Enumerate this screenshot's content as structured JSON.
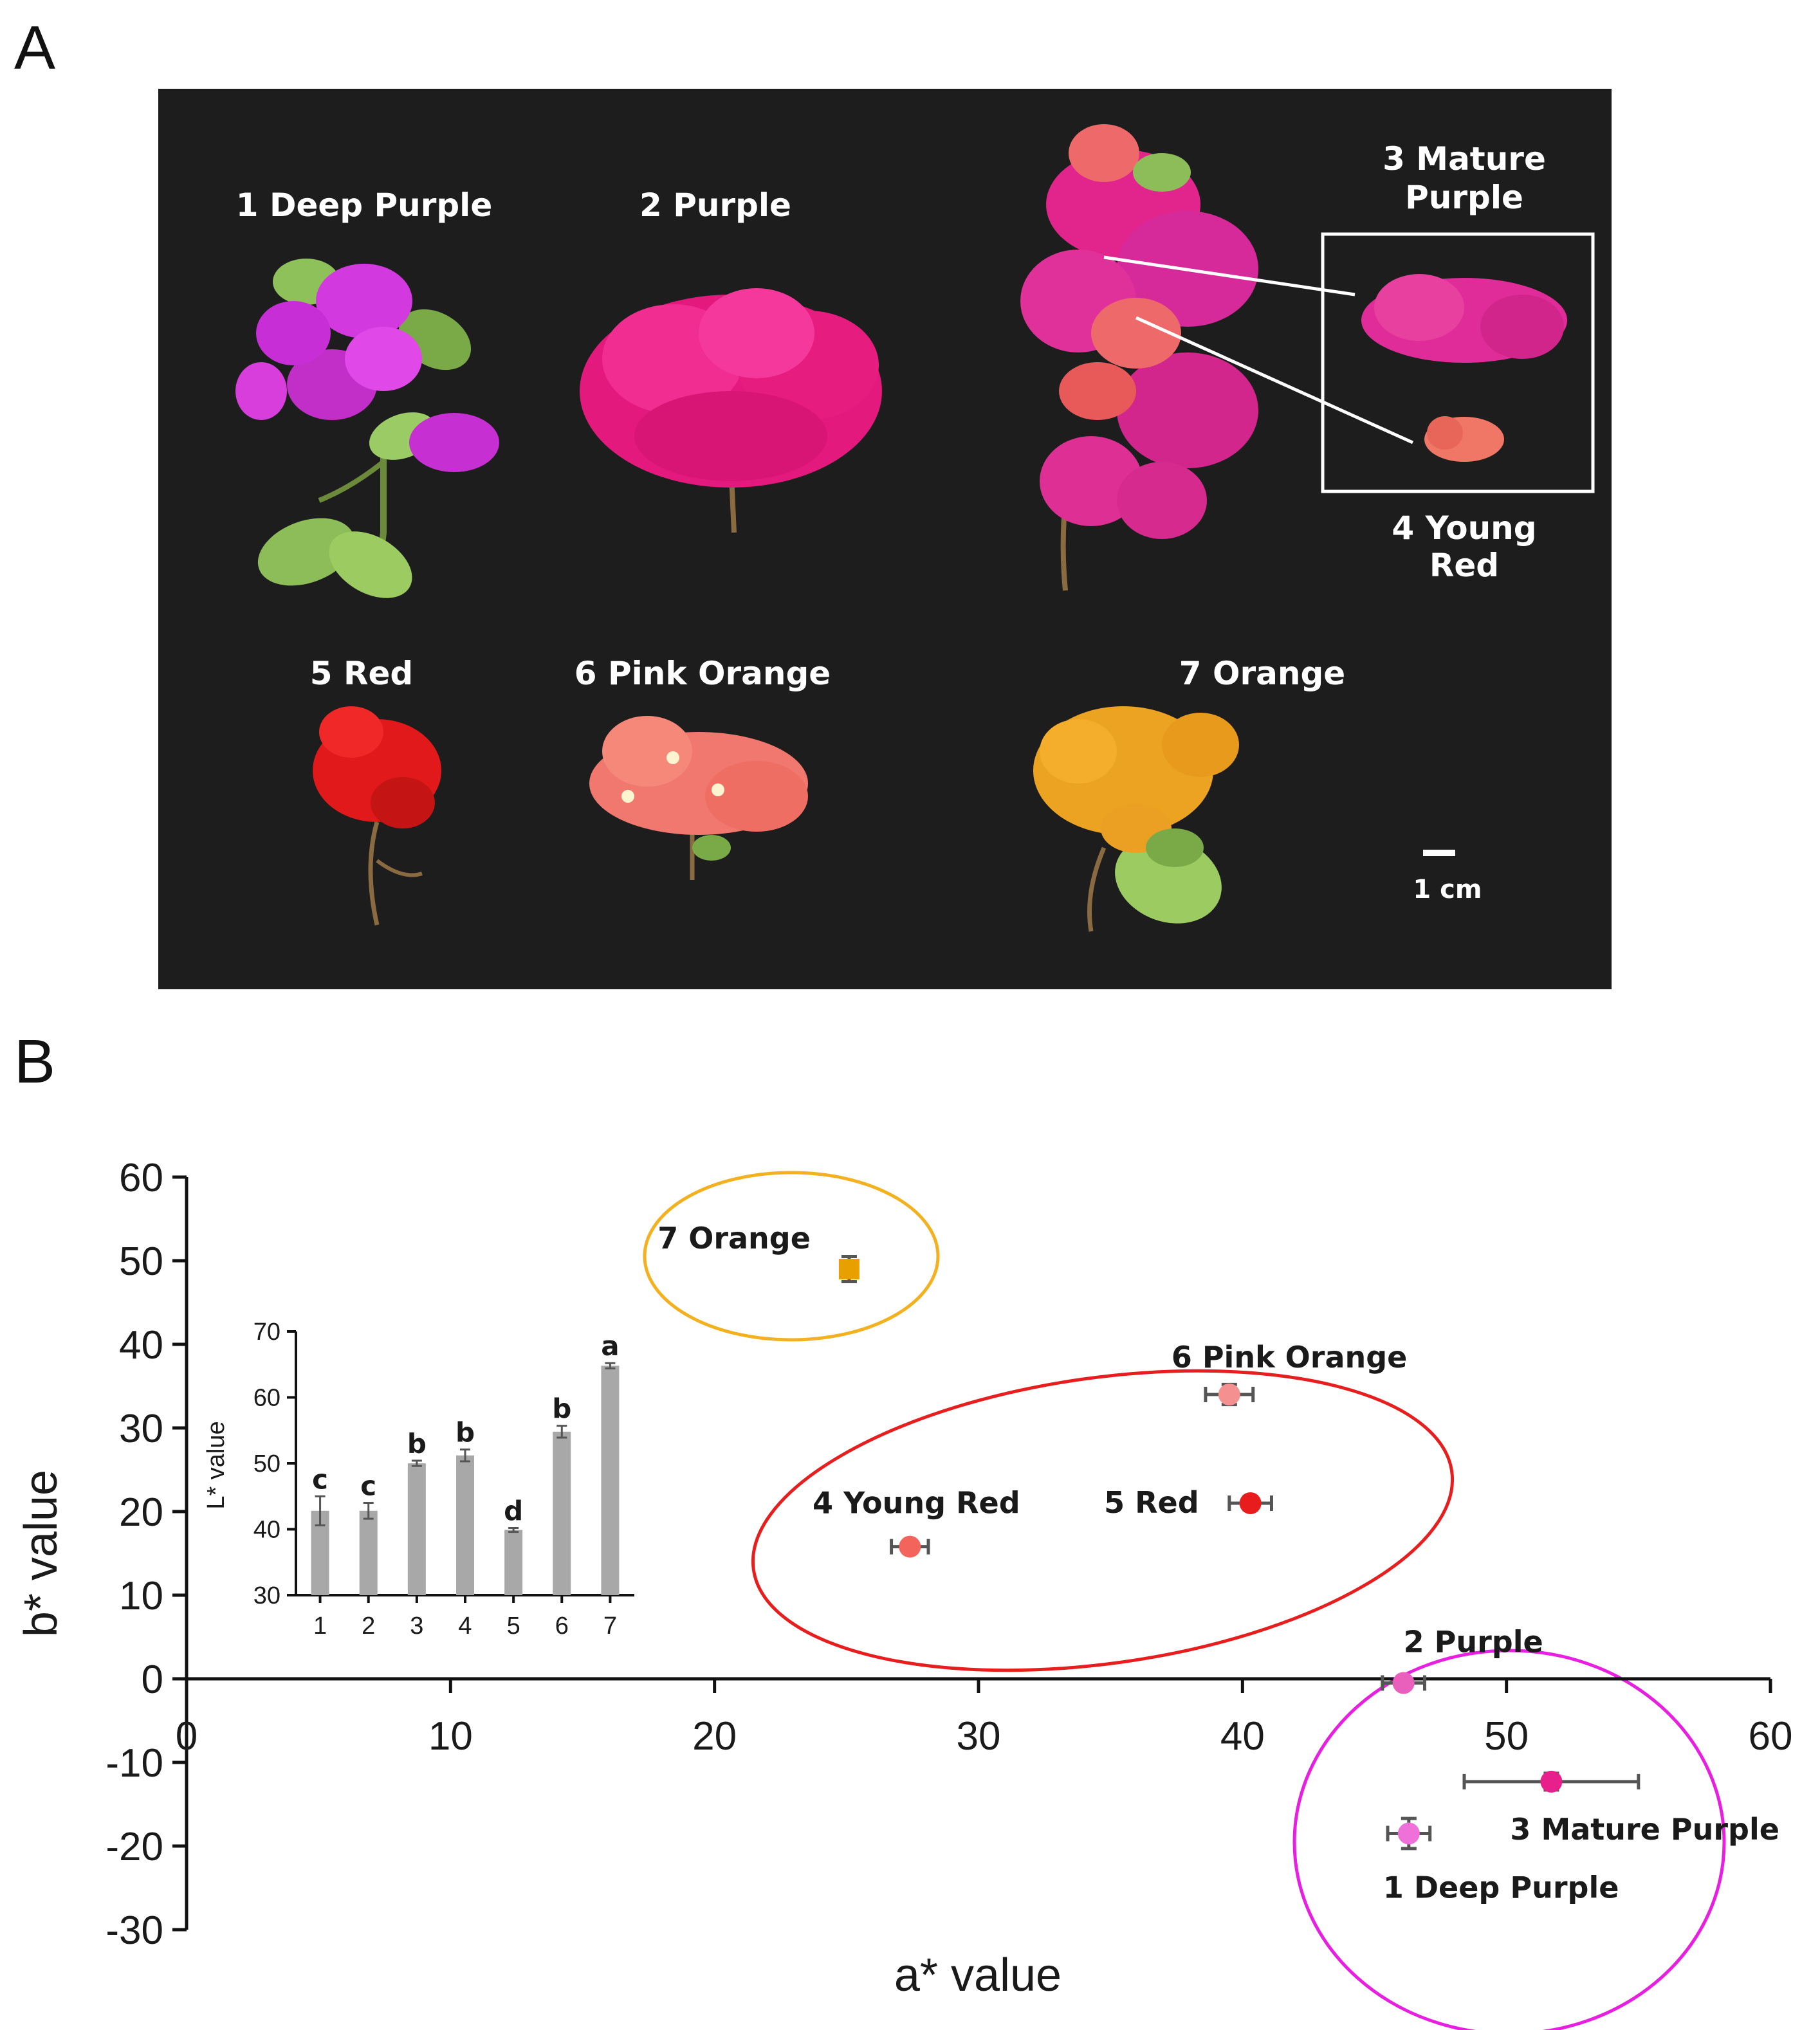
{
  "panels": {
    "a": "A",
    "b": "B"
  },
  "photo": {
    "labels": [
      {
        "id": "1",
        "text": "1 Deep Purple"
      },
      {
        "id": "2",
        "text": "2 Purple"
      },
      {
        "id": "3a",
        "text": "3 Mature"
      },
      {
        "id": "3b",
        "text": "Purple"
      },
      {
        "id": "4a",
        "text": "4 Young"
      },
      {
        "id": "4b",
        "text": "Red"
      },
      {
        "id": "5",
        "text": "5 Red"
      },
      {
        "id": "6",
        "text": "6 Pink Orange"
      },
      {
        "id": "7",
        "text": "7 Orange"
      }
    ],
    "scale_bar": "1 cm"
  },
  "chart_data": [
    {
      "type": "scatter",
      "xlabel": "a* value",
      "ylabel": "b* value",
      "xlim": [
        0,
        60
      ],
      "ylim": [
        -30,
        60
      ],
      "xticks": [
        0,
        10,
        20,
        30,
        40,
        50,
        60
      ],
      "yticks": [
        60,
        50,
        40,
        30,
        20,
        10,
        0,
        -10,
        -20,
        -30
      ],
      "grid": false,
      "points": [
        {
          "label": "1 Deep Purple",
          "a": 46.3,
          "b": -18.5,
          "a_err": 0.8,
          "b_err": 1.8,
          "color": "#ee70d8"
        },
        {
          "label": "2 Purple",
          "a": 46.1,
          "b": -0.5,
          "a_err": 0.8,
          "b_err": 0.5,
          "color": "#e860bc"
        },
        {
          "label": "3 Mature Purple",
          "a": 51.7,
          "b": -12.3,
          "a_err": 3.3,
          "b_err": 1.0,
          "color": "#e8208c"
        },
        {
          "label": "4 Young Red",
          "a": 27.4,
          "b": 15.8,
          "a_err": 0.7,
          "b_err": 0.5,
          "color": "#f2645c"
        },
        {
          "label": "5 Red",
          "a": 40.3,
          "b": 21.0,
          "a_err": 0.8,
          "b_err": 0.8,
          "color": "#e81c1c"
        },
        {
          "label": "6 Pink Orange",
          "a": 39.5,
          "b": 34.0,
          "a_err": 0.9,
          "b_err": 1.2,
          "color": "#f49090"
        },
        {
          "label": "7 Orange",
          "a": 25.1,
          "b": 49.0,
          "a_err": 0.2,
          "b_err": 1.5,
          "color": "#e8a000"
        }
      ],
      "groups": [
        {
          "name": "orange",
          "color": "#f3b11f",
          "members": [
            "7 Orange"
          ]
        },
        {
          "name": "red",
          "color": "#e81e1e",
          "members": [
            "4 Young Red",
            "5 Red",
            "6 Pink Orange"
          ]
        },
        {
          "name": "purple",
          "color": "#e81ee0",
          "members": [
            "1 Deep Purple",
            "2 Purple",
            "3 Mature Purple"
          ]
        }
      ]
    },
    {
      "type": "bar",
      "ylabel": "L* value",
      "ylim": [
        30,
        70
      ],
      "yticks": [
        70,
        60,
        50,
        40,
        30
      ],
      "categories": [
        "1",
        "2",
        "3",
        "4",
        "5",
        "6",
        "7"
      ],
      "values": [
        42.8,
        42.8,
        50.0,
        51.2,
        39.9,
        54.8,
        64.8
      ],
      "errors": [
        2.2,
        1.2,
        0.4,
        0.9,
        0.3,
        0.9,
        0.4
      ],
      "letters": [
        "c",
        "c",
        "b",
        "b",
        "d",
        "b",
        "a"
      ],
      "bar_color": "#a8a8a8"
    }
  ]
}
